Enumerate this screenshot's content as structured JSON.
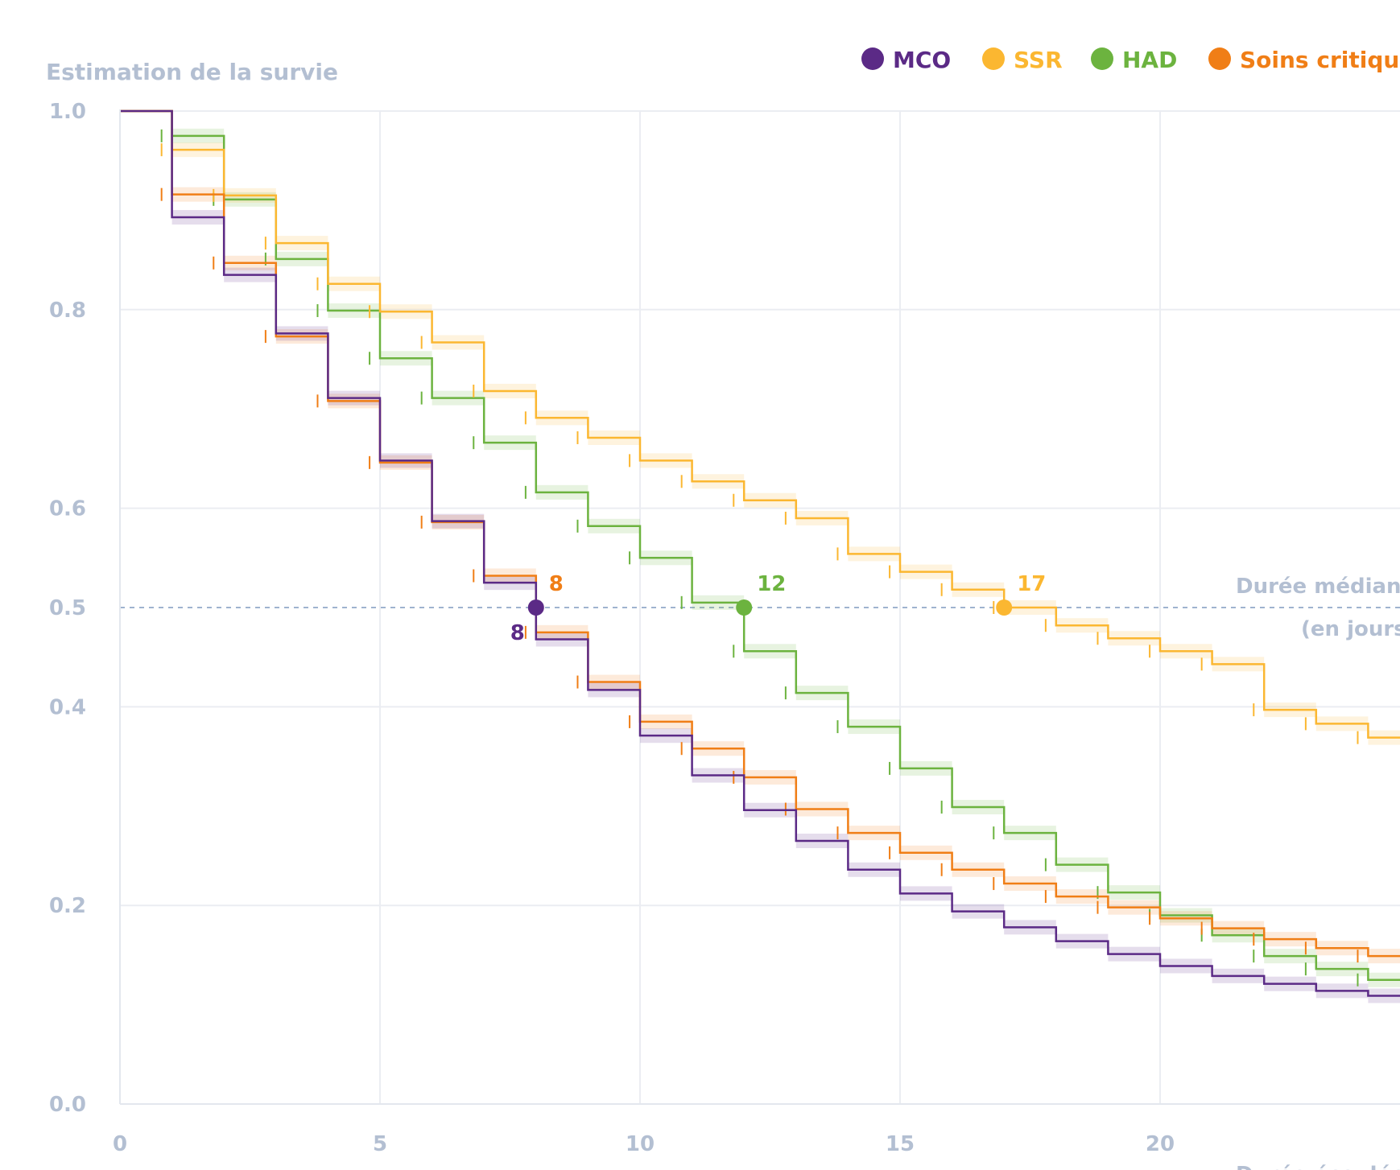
{
  "chart_data": {
    "type": "line",
    "ylabel": "Estimation de la survie",
    "xlabel": "Durée écoulée (en jours)",
    "xlim": [
      0,
      24.5
    ],
    "ylim": [
      0,
      1
    ],
    "x_ticks": [
      0,
      5,
      10,
      15,
      20
    ],
    "y_ticks": [
      "1.0",
      "0.8",
      "0.6",
      "0.5",
      "0.4",
      "0.2",
      "0.0"
    ],
    "grid": true,
    "legend_position": "top-right",
    "median_line": {
      "y": 0.5,
      "label_line1": "Durée médiane",
      "label_line2": "(en jours)"
    },
    "series": [
      {
        "name": "MCO",
        "color": "#5b2a86",
        "median": 8,
        "median_label_position": "below-left",
        "values": [
          1.0,
          0.893,
          0.835,
          0.776,
          0.711,
          0.648,
          0.587,
          0.525,
          0.468,
          0.417,
          0.371,
          0.331,
          0.296,
          0.265,
          0.236,
          0.212,
          0.194,
          0.178,
          0.164,
          0.151,
          0.139,
          0.129,
          0.121,
          0.114,
          0.109
        ]
      },
      {
        "name": "SSR",
        "color": "#fbb731",
        "median": 17,
        "median_label_position": "above-right",
        "values": [
          1.0,
          0.961,
          0.915,
          0.867,
          0.826,
          0.798,
          0.767,
          0.718,
          0.691,
          0.671,
          0.648,
          0.627,
          0.608,
          0.59,
          0.554,
          0.536,
          0.518,
          0.5,
          0.482,
          0.469,
          0.456,
          0.443,
          0.397,
          0.383,
          0.369
        ]
      },
      {
        "name": "HAD",
        "color": "#6cb33f",
        "median": 12,
        "median_label_position": "above-right",
        "values": [
          1.0,
          0.975,
          0.911,
          0.851,
          0.799,
          0.751,
          0.711,
          0.666,
          0.616,
          0.582,
          0.55,
          0.505,
          0.456,
          0.414,
          0.38,
          0.338,
          0.299,
          0.273,
          0.241,
          0.213,
          0.19,
          0.17,
          0.149,
          0.136,
          0.125
        ]
      },
      {
        "name": "Soins critiques",
        "color": "#f07e16",
        "median": 8,
        "median_label_position": "above-right",
        "values": [
          1.0,
          0.916,
          0.847,
          0.773,
          0.708,
          0.646,
          0.586,
          0.532,
          0.475,
          0.425,
          0.385,
          0.358,
          0.329,
          0.297,
          0.273,
          0.253,
          0.236,
          0.222,
          0.209,
          0.198,
          0.187,
          0.177,
          0.166,
          0.157,
          0.149
        ]
      }
    ]
  }
}
